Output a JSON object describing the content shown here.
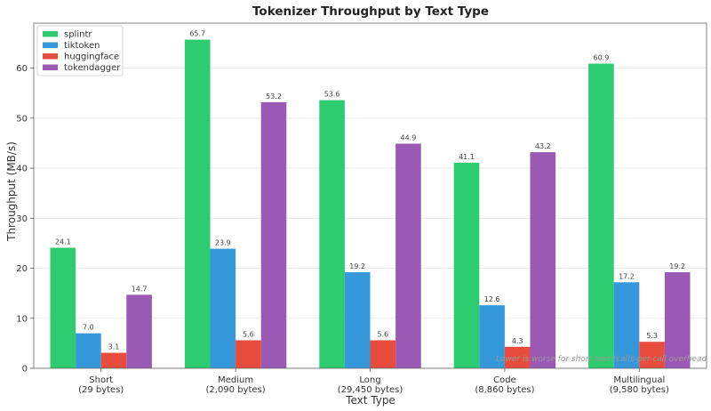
{
  "chart_data": {
    "type": "bar",
    "title": "Tokenizer Throughput by Text Type",
    "xlabel": "Text Type",
    "ylabel": "Throughput (MB/s)",
    "categories": [
      [
        "Short",
        "(29 bytes)"
      ],
      [
        "Medium",
        "(2,090 bytes)"
      ],
      [
        "Long",
        "(29,450 bytes)"
      ],
      [
        "Code",
        "(8,860 bytes)"
      ],
      [
        "Multilingual",
        "(9,580 bytes)"
      ]
    ],
    "series": [
      {
        "name": "splintr",
        "color": "#2ecc71",
        "values": [
          24.1,
          65.7,
          53.6,
          41.1,
          60.9
        ]
      },
      {
        "name": "tiktoken",
        "color": "#3498db",
        "values": [
          7.0,
          23.9,
          19.2,
          12.6,
          17.2
        ]
      },
      {
        "name": "huggingface",
        "color": "#e74c3c",
        "values": [
          3.1,
          5.6,
          5.6,
          4.3,
          5.3
        ]
      },
      {
        "name": "tokendagger",
        "color": "#9b59b6",
        "values": [
          14.7,
          53.2,
          44.9,
          43.2,
          19.2
        ]
      }
    ],
    "ylim": [
      0,
      69
    ],
    "yticks": [
      0,
      10,
      20,
      30,
      40,
      50,
      60
    ],
    "grid": true,
    "legend_position": "top-left",
    "annotation": "Lower is worse for short text (calls-per-call overhead"
  }
}
